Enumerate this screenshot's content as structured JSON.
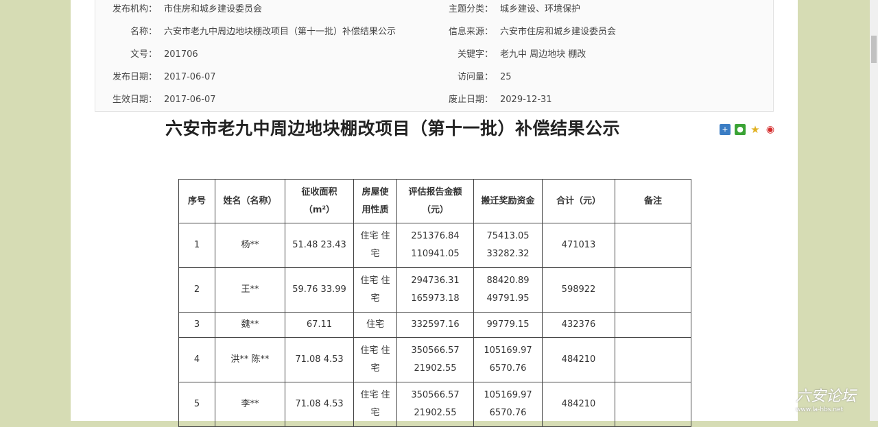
{
  "info": {
    "left": [
      {
        "label": "发布机构：",
        "value": "市住房和城乡建设委员会"
      },
      {
        "label": "名称：",
        "value": "六安市老九中周边地块棚改项目（第十一批）补偿结果公示"
      },
      {
        "label": "文号：",
        "value": "201706"
      },
      {
        "label": "发布日期：",
        "value": "2017-06-07"
      },
      {
        "label": "生效日期：",
        "value": "2017-06-07"
      }
    ],
    "right": [
      {
        "label": "主题分类：",
        "value": "城乡建设、环境保护"
      },
      {
        "label": "信息来源：",
        "value": "六安市住房和城乡建设委员会"
      },
      {
        "label": "关键字：",
        "value": "老九中  周边地块  棚改"
      },
      {
        "label": "访问量：",
        "value": "25"
      },
      {
        "label": "废止日期：",
        "value": "2029-12-31"
      }
    ]
  },
  "title": "六安市老九中周边地块棚改项目（第十一批）补偿结果公示",
  "share_icons": {
    "colors": {
      "plus": "#3b7dc4",
      "wechat": "#3aa335",
      "star": "#e0b020",
      "weibo": "#d52b2b"
    }
  },
  "table": {
    "headers": [
      [
        "序号"
      ],
      [
        "姓名（名称）"
      ],
      [
        "征收面积",
        "（m²）"
      ],
      [
        "房屋使",
        "用性质"
      ],
      [
        "评估报告金额",
        "（元）"
      ],
      [
        "搬迁奖励资金"
      ],
      [
        "合计（元）"
      ],
      [
        "备注"
      ]
    ],
    "rows": [
      [
        [
          "1"
        ],
        [
          "杨**"
        ],
        [
          "51.48 23.43"
        ],
        [
          "住宅 住",
          "宅"
        ],
        [
          "251376.84",
          "110941.05"
        ],
        [
          "75413.05",
          "33282.32"
        ],
        [
          "471013"
        ],
        [
          ""
        ]
      ],
      [
        [
          "2"
        ],
        [
          "王**"
        ],
        [
          "59.76 33.99"
        ],
        [
          "住宅 住",
          "宅"
        ],
        [
          "294736.31",
          "165973.18"
        ],
        [
          "88420.89",
          "49791.95"
        ],
        [
          "598922"
        ],
        [
          ""
        ]
      ],
      [
        [
          "3"
        ],
        [
          "魏**"
        ],
        [
          "67.11"
        ],
        [
          "住宅"
        ],
        [
          "332597.16"
        ],
        [
          "99779.15"
        ],
        [
          "432376"
        ],
        [
          ""
        ]
      ],
      [
        [
          "4"
        ],
        [
          "洪** 陈**"
        ],
        [
          "71.08 4.53"
        ],
        [
          "住宅 住",
          "宅"
        ],
        [
          "350566.57",
          "21902.55"
        ],
        [
          "105169.97",
          "6570.76"
        ],
        [
          "484210"
        ],
        [
          ""
        ]
      ],
      [
        [
          "5"
        ],
        [
          "李**"
        ],
        [
          "71.08 4.53"
        ],
        [
          "住宅 住",
          "宅"
        ],
        [
          "350566.57",
          "21902.55"
        ],
        [
          "105169.97",
          "6570.76"
        ],
        [
          "484210"
        ],
        [
          ""
        ]
      ]
    ]
  },
  "watermark": {
    "text": "六安论坛",
    "url": "www.la-hbs.net"
  }
}
